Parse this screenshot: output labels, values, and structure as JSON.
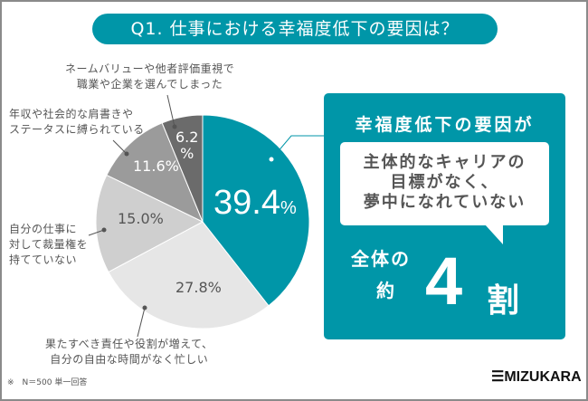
{
  "title": "Q1. 仕事における幸福度低下の要因は？",
  "chart_data": {
    "type": "pie",
    "start": "top-clockwise",
    "slices": [
      {
        "label": "主体的なキャリアの目標がなく、夢中になれていない",
        "value": 39.4,
        "pct_label": "39.4%",
        "color": "#0096a8"
      },
      {
        "label": "果たすべき責任や役割が増えて、自分の自由な時間がなく忙しい",
        "value": 27.8,
        "pct_label": "27.8%",
        "color": "#e6e6e6"
      },
      {
        "label": "自分の仕事に対して裁量権を持てていない",
        "value": 15.0,
        "pct_label": "15.0%",
        "color": "#cfcfcf"
      },
      {
        "label": "年収や社会的な肩書きやステータスに縛られている",
        "value": 11.6,
        "pct_label": "11.6%",
        "color": "#9b9b9b"
      },
      {
        "label": "ネームバリューや他者評価重視で職業や企業を選んでしまった",
        "value": 6.2,
        "pct_label": "6.2%",
        "color": "#6b6b6b"
      }
    ]
  },
  "labels": {
    "s1": [
      "果たすべき責任や役割が増えて、",
      "自分の自由な時間がなく忙しい"
    ],
    "s2": [
      "自分の仕事に",
      "対して裁量権を",
      "持てていない"
    ],
    "s3": [
      "年収や社会的な肩書きや",
      "ステータスに縛られている"
    ],
    "s4": [
      "ネームバリューや他者評価重視で",
      "職業や企業を選んでしまった"
    ],
    "p0": "39.4",
    "p0u": "%",
    "p1": "27.8%",
    "p2": "15.0%",
    "p3": "11.6%",
    "p4a": "6.2",
    "p4b": "%"
  },
  "panel": {
    "heading": "幸福度低下の要因が",
    "bubble": [
      "主体的なキャリアの",
      "目標がなく、",
      "夢中になれていない"
    ],
    "whole": "全体の",
    "approx": "約",
    "number": "4",
    "unit": "割"
  },
  "note": "※　N＝500 単一回答",
  "logo": "MIZUKARA"
}
